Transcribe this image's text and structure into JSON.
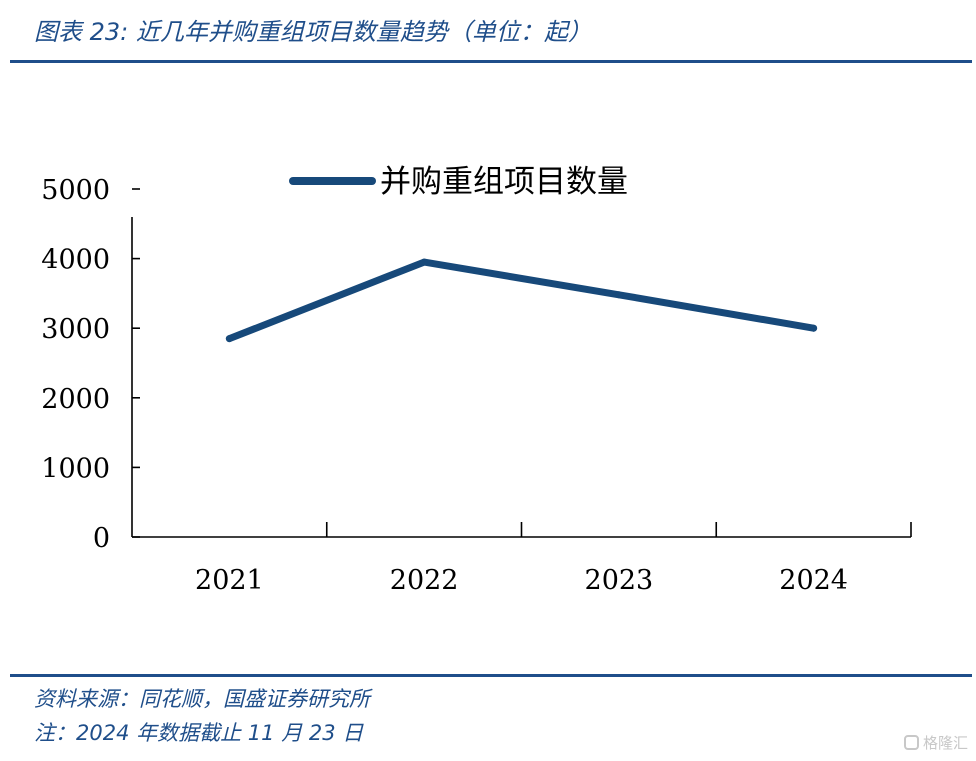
{
  "header": {
    "title": "图表 23:  近几年并购重组项目数量趋势（单位：起）"
  },
  "footer": {
    "source": "资料来源：同花顺，国盛证券研究所",
    "note": "注：2024 年数据截止 11 月 23 日"
  },
  "watermark": {
    "text": "格隆汇"
  },
  "colors": {
    "accent": "#1f4e8a",
    "series": "#17497a",
    "axis": "#000000"
  },
  "chart_data": {
    "type": "line",
    "title": "",
    "xlabel": "",
    "ylabel": "",
    "categories": [
      "2021",
      "2022",
      "2023",
      "2024"
    ],
    "series": [
      {
        "name": "并购重组项目数量",
        "values": [
          2850,
          3950,
          3480,
          3000
        ]
      }
    ],
    "ylim": [
      0,
      5000
    ],
    "yticks": [
      "0",
      "1000",
      "2000",
      "3000",
      "4000",
      "5000"
    ],
    "grid": false,
    "legend": "top-center"
  }
}
